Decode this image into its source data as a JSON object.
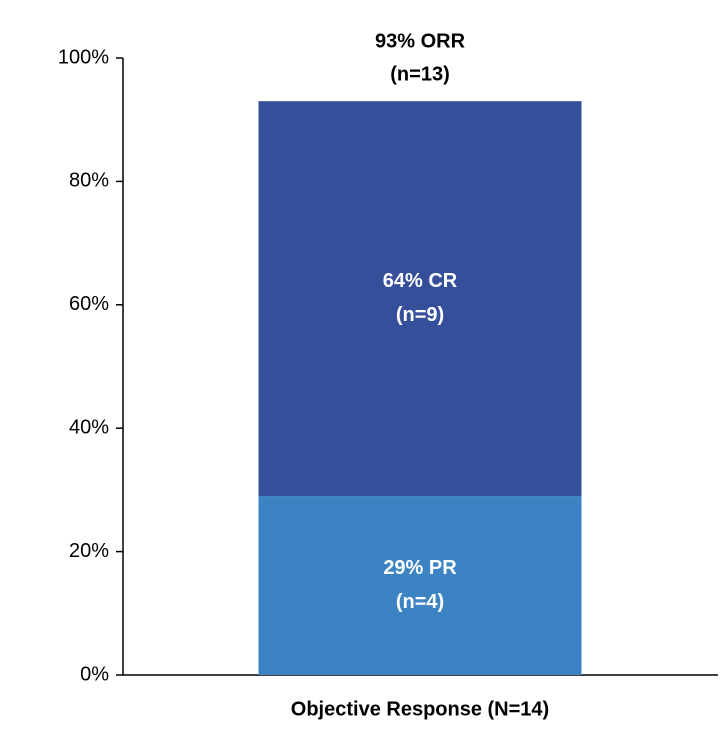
{
  "chart_data": {
    "type": "stacked-bar",
    "annotation": [
      "93% ORR",
      "(n=13)"
    ],
    "categories": [
      "Objective Response (N=14)"
    ],
    "series": [
      {
        "name": "PR",
        "color": "#3b83c2",
        "values": [
          29
        ],
        "value_labels": [
          [
            "29% PR",
            "(n=4)"
          ]
        ]
      },
      {
        "name": "CR",
        "color": "#354f9b",
        "values": [
          64
        ],
        "value_labels": [
          [
            "64% CR",
            "(n=9)"
          ]
        ]
      }
    ],
    "ylim": [
      0,
      100
    ],
    "yticks": [
      {
        "value": 0,
        "label": "0%"
      },
      {
        "value": 20,
        "label": "20%"
      },
      {
        "value": 40,
        "label": "40%"
      },
      {
        "value": 60,
        "label": "60%"
      },
      {
        "value": 80,
        "label": "80%"
      },
      {
        "value": 100,
        "label": "100%"
      }
    ]
  }
}
